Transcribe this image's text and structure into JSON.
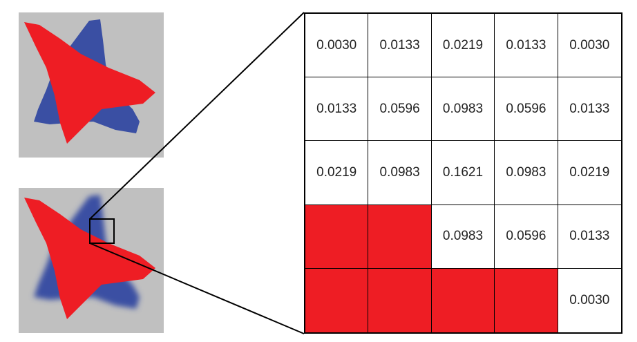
{
  "colors": {
    "background_gray": "#c0c0c0",
    "triangle_red": "#ee1d24",
    "star_blue": "#3a4fa3"
  },
  "thumbnails": [
    {
      "name": "sharp",
      "blurred": false
    },
    {
      "name": "blurred",
      "blurred": true
    }
  ],
  "kernel_grid": {
    "rows": [
      [
        {
          "text": "0.0030",
          "red": false
        },
        {
          "text": "0.0133",
          "red": false
        },
        {
          "text": "0.0219",
          "red": false
        },
        {
          "text": "0.0133",
          "red": false
        },
        {
          "text": "0.0030",
          "red": false
        }
      ],
      [
        {
          "text": "0.0133",
          "red": false
        },
        {
          "text": "0.0596",
          "red": false
        },
        {
          "text": "0.0983",
          "red": false
        },
        {
          "text": "0.0596",
          "red": false
        },
        {
          "text": "0.0133",
          "red": false
        }
      ],
      [
        {
          "text": "0.0219",
          "red": false
        },
        {
          "text": "0.0983",
          "red": false
        },
        {
          "text": "0.1621",
          "red": false
        },
        {
          "text": "0.0983",
          "red": false
        },
        {
          "text": "0.0219",
          "red": false
        }
      ],
      [
        {
          "text": "",
          "red": true
        },
        {
          "text": "",
          "red": true
        },
        {
          "text": "0.0983",
          "red": false
        },
        {
          "text": "0.0596",
          "red": false
        },
        {
          "text": "0.0133",
          "red": false
        }
      ],
      [
        {
          "text": "",
          "red": true
        },
        {
          "text": "",
          "red": true
        },
        {
          "text": "",
          "red": true
        },
        {
          "text": "",
          "red": true
        },
        {
          "text": "0.0030",
          "red": false
        }
      ]
    ]
  }
}
